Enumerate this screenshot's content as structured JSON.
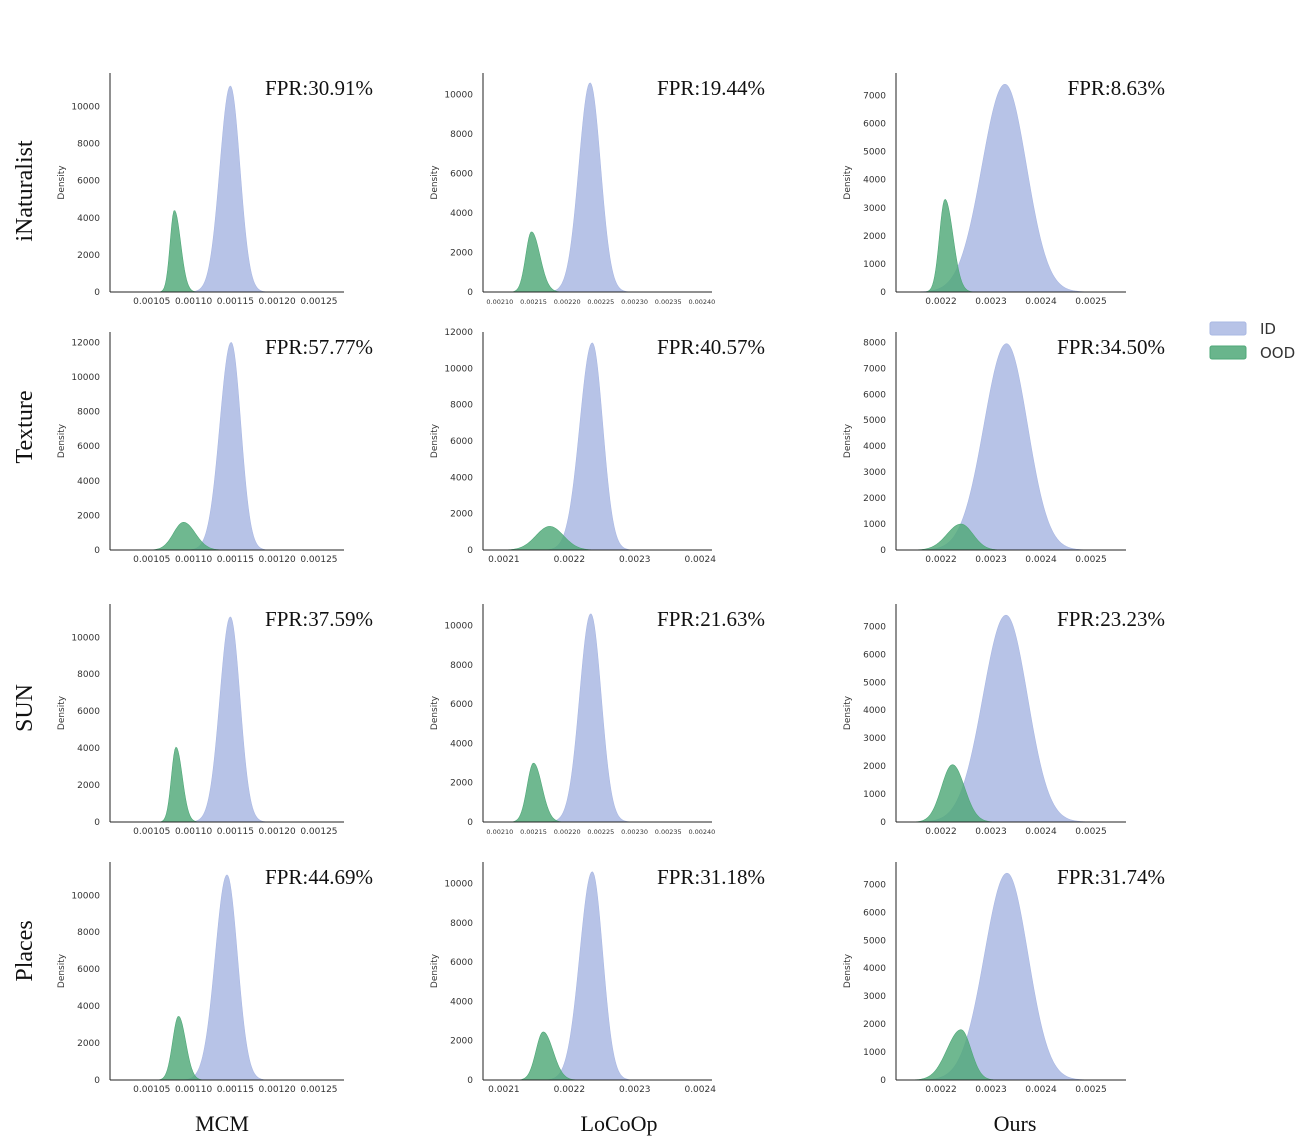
{
  "figure": {
    "row_labels": [
      "iNaturalist",
      "Texture",
      "SUN",
      "Places"
    ],
    "column_labels": [
      "MCM",
      "LoCoOp",
      "Ours"
    ],
    "legend": [
      {
        "label": "ID",
        "color": "#aab8e3"
      },
      {
        "label": "OOD",
        "color": "#4fa878"
      }
    ],
    "y_axis_label": "Density"
  },
  "chart_data": [
    {
      "type": "area",
      "row": "iNaturalist",
      "method": "MCM",
      "title": "FPR:30.91%",
      "ylabel": "Density",
      "xlim": [
        0.001,
        0.00128
      ],
      "ylim": [
        0,
        11800
      ],
      "xticks": [
        0.00105,
        0.0011,
        0.00115,
        0.0012,
        0.00125
      ],
      "xtick_labels": [
        "0.00105",
        "0.00110",
        "0.00115",
        "0.00120",
        "0.00125"
      ],
      "yticks": [
        0,
        2000,
        4000,
        6000,
        8000,
        10000
      ],
      "ytick_labels": [
        "0",
        "2000",
        "4000",
        "6000",
        "8000",
        "10000"
      ],
      "series": [
        {
          "name": "ID",
          "peak_x": 0.001144,
          "peak_y": 11100,
          "sigma_left": 1.25e-05,
          "sigma_right": 1.15e-05
        },
        {
          "name": "OOD",
          "peak_x": 0.001077,
          "peak_y": 4400,
          "sigma_left": 5e-06,
          "sigma_right": 7.5e-06
        }
      ]
    },
    {
      "type": "area",
      "row": "iNaturalist",
      "method": "LoCoOp",
      "title": "FPR:19.44%",
      "ylabel": "Density",
      "xlim": [
        0.002075,
        0.002415
      ],
      "ylim": [
        0,
        11100
      ],
      "xticks": [
        0.0021,
        0.00215,
        0.0022,
        0.00225,
        0.0023,
        0.00235,
        0.0024
      ],
      "xtick_labels": [
        "0.00210",
        "0.00215",
        "0.00220",
        "0.00225",
        "0.00230",
        "0.00235",
        "0.00240"
      ],
      "yticks": [
        0,
        2000,
        4000,
        6000,
        8000,
        10000
      ],
      "ytick_labels": [
        "0",
        "2000",
        "4000",
        "6000",
        "8000",
        "10000"
      ],
      "series": [
        {
          "name": "ID",
          "peak_x": 0.002234,
          "peak_y": 10600,
          "sigma_left": 1.65e-05,
          "sigma_right": 1.55e-05
        },
        {
          "name": "OOD",
          "peak_x": 0.002147,
          "peak_y": 3050,
          "sigma_left": 8.5e-06,
          "sigma_right": 1.25e-05
        }
      ]
    },
    {
      "type": "area",
      "row": "iNaturalist",
      "method": "Ours",
      "title": "FPR:8.63%",
      "ylabel": "Density",
      "xlim": [
        0.00211,
        0.00257
      ],
      "ylim": [
        0,
        7800
      ],
      "xticks": [
        0.0022,
        0.0023,
        0.0024,
        0.0025
      ],
      "xtick_labels": [
        "0.0022",
        "0.0023",
        "0.0024",
        "0.0025"
      ],
      "yticks": [
        0,
        1000,
        2000,
        3000,
        4000,
        5000,
        6000,
        7000
      ],
      "ytick_labels": [
        "0",
        "1000",
        "2000",
        "3000",
        "4000",
        "5000",
        "6000",
        "7000"
      ],
      "series": [
        {
          "name": "ID",
          "peak_x": 0.002328,
          "peak_y": 7400,
          "sigma_left": 4.6e-05,
          "sigma_right": 4.3e-05
        },
        {
          "name": "OOD",
          "peak_x": 0.002208,
          "peak_y": 3300,
          "sigma_left": 1.1e-05,
          "sigma_right": 1.6e-05
        }
      ]
    },
    {
      "type": "area",
      "row": "Texture",
      "method": "MCM",
      "title": "FPR:57.77%",
      "ylabel": "Density",
      "xlim": [
        0.001,
        0.00128
      ],
      "ylim": [
        0,
        12600
      ],
      "xticks": [
        0.00105,
        0.0011,
        0.00115,
        0.0012,
        0.00125
      ],
      "xtick_labels": [
        "0.00105",
        "0.00110",
        "0.00115",
        "0.00120",
        "0.00125"
      ],
      "yticks": [
        0,
        2000,
        4000,
        6000,
        8000,
        10000,
        12000
      ],
      "ytick_labels": [
        "0",
        "2000",
        "4000",
        "6000",
        "8000",
        "10000",
        "12000"
      ],
      "series": [
        {
          "name": "ID",
          "peak_x": 0.001145,
          "peak_y": 12000,
          "sigma_left": 1.35e-05,
          "sigma_right": 1.15e-05
        },
        {
          "name": "OOD",
          "peak_x": 0.001088,
          "peak_y": 1600,
          "sigma_left": 1.2e-05,
          "sigma_right": 1.4e-05
        }
      ]
    },
    {
      "type": "area",
      "row": "Texture",
      "method": "LoCoOp",
      "title": "FPR:40.57%",
      "ylabel": "Density",
      "xlim": [
        0.002068,
        0.002418
      ],
      "ylim": [
        0,
        12000
      ],
      "xticks": [
        0.0021,
        0.0022,
        0.0023,
        0.0024
      ],
      "xtick_labels": [
        "0.0021",
        "0.0022",
        "0.0023",
        "0.0024"
      ],
      "yticks": [
        0,
        2000,
        4000,
        6000,
        8000,
        10000,
        12000
      ],
      "ytick_labels": [
        "0",
        "2000",
        "4000",
        "6000",
        "8000",
        "10000",
        "12000"
      ],
      "series": [
        {
          "name": "ID",
          "peak_x": 0.002235,
          "peak_y": 11400,
          "sigma_left": 1.9e-05,
          "sigma_right": 1.6e-05
        },
        {
          "name": "OOD",
          "peak_x": 0.00217,
          "peak_y": 1300,
          "sigma_left": 2.1e-05,
          "sigma_right": 2.1e-05
        }
      ]
    },
    {
      "type": "area",
      "row": "Texture",
      "method": "Ours",
      "title": "FPR:34.50%",
      "ylabel": "Density",
      "xlim": [
        0.00211,
        0.00257
      ],
      "ylim": [
        0,
        8400
      ],
      "xticks": [
        0.0022,
        0.0023,
        0.0024,
        0.0025
      ],
      "xtick_labels": [
        "0.0022",
        "0.0023",
        "0.0024",
        "0.0025"
      ],
      "yticks": [
        0,
        1000,
        2000,
        3000,
        4000,
        5000,
        6000,
        7000,
        8000
      ],
      "ytick_labels": [
        "0",
        "1000",
        "2000",
        "3000",
        "4000",
        "5000",
        "6000",
        "7000",
        "8000"
      ],
      "series": [
        {
          "name": "ID",
          "peak_x": 0.002331,
          "peak_y": 7950,
          "sigma_left": 4.5e-05,
          "sigma_right": 4.2e-05
        },
        {
          "name": "OOD",
          "peak_x": 0.00224,
          "peak_y": 1000,
          "sigma_left": 2.8e-05,
          "sigma_right": 2.4e-05
        }
      ]
    },
    {
      "type": "area",
      "row": "SUN",
      "method": "MCM",
      "title": "FPR:37.59%",
      "ylabel": "Density",
      "xlim": [
        0.001,
        0.00128
      ],
      "ylim": [
        0,
        11800
      ],
      "xticks": [
        0.00105,
        0.0011,
        0.00115,
        0.0012,
        0.00125
      ],
      "xtick_labels": [
        "0.00105",
        "0.00110",
        "0.00115",
        "0.00120",
        "0.00125"
      ],
      "yticks": [
        0,
        2000,
        4000,
        6000,
        8000,
        10000
      ],
      "ytick_labels": [
        "0",
        "2000",
        "4000",
        "6000",
        "8000",
        "10000"
      ],
      "series": [
        {
          "name": "ID",
          "peak_x": 0.001144,
          "peak_y": 11100,
          "sigma_left": 1.25e-05,
          "sigma_right": 1.15e-05
        },
        {
          "name": "OOD",
          "peak_x": 0.001079,
          "peak_y": 4050,
          "sigma_left": 5.5e-06,
          "sigma_right": 7.5e-06
        }
      ]
    },
    {
      "type": "area",
      "row": "SUN",
      "method": "LoCoOp",
      "title": "FPR:21.63%",
      "ylabel": "Density",
      "xlim": [
        0.002075,
        0.002415
      ],
      "ylim": [
        0,
        11100
      ],
      "xticks": [
        0.0021,
        0.00215,
        0.0022,
        0.00225,
        0.0023,
        0.00235,
        0.0024
      ],
      "xtick_labels": [
        "0.00210",
        "0.00215",
        "0.00220",
        "0.00225",
        "0.00230",
        "0.00235",
        "0.00240"
      ],
      "yticks": [
        0,
        2000,
        4000,
        6000,
        8000,
        10000
      ],
      "ytick_labels": [
        "0",
        "2000",
        "4000",
        "6000",
        "8000",
        "10000"
      ],
      "series": [
        {
          "name": "ID",
          "peak_x": 0.002235,
          "peak_y": 10600,
          "sigma_left": 1.65e-05,
          "sigma_right": 1.55e-05
        },
        {
          "name": "OOD",
          "peak_x": 0.00215,
          "peak_y": 3000,
          "sigma_left": 9.5e-06,
          "sigma_right": 1.25e-05
        }
      ]
    },
    {
      "type": "area",
      "row": "SUN",
      "method": "Ours",
      "title": "FPR:23.23%",
      "ylabel": "Density",
      "xlim": [
        0.00211,
        0.00257
      ],
      "ylim": [
        0,
        7800
      ],
      "xticks": [
        0.0022,
        0.0023,
        0.0024,
        0.0025
      ],
      "xtick_labels": [
        "0.0022",
        "0.0023",
        "0.0024",
        "0.0025"
      ],
      "yticks": [
        0,
        1000,
        2000,
        3000,
        4000,
        5000,
        6000,
        7000
      ],
      "ytick_labels": [
        "0",
        "1000",
        "2000",
        "3000",
        "4000",
        "5000",
        "6000",
        "7000"
      ],
      "series": [
        {
          "name": "ID",
          "peak_x": 0.00233,
          "peak_y": 7400,
          "sigma_left": 4.6e-05,
          "sigma_right": 4.3e-05
        },
        {
          "name": "OOD",
          "peak_x": 0.002223,
          "peak_y": 2050,
          "sigma_left": 2.2e-05,
          "sigma_right": 2.4e-05
        }
      ]
    },
    {
      "type": "area",
      "row": "Places",
      "method": "MCM",
      "title": "FPR:44.69%",
      "ylabel": "Density",
      "xlim": [
        0.001,
        0.00128
      ],
      "ylim": [
        0,
        11800
      ],
      "xticks": [
        0.00105,
        0.0011,
        0.00115,
        0.0012,
        0.00125
      ],
      "xtick_labels": [
        "0.00105",
        "0.00110",
        "0.00115",
        "0.00120",
        "0.00125"
      ],
      "yticks": [
        0,
        2000,
        4000,
        6000,
        8000,
        10000
      ],
      "ytick_labels": [
        "0",
        "2000",
        "4000",
        "6000",
        "8000",
        "10000"
      ],
      "series": [
        {
          "name": "ID",
          "peak_x": 0.00114,
          "peak_y": 11100,
          "sigma_left": 1.4e-05,
          "sigma_right": 1.25e-05
        },
        {
          "name": "OOD",
          "peak_x": 0.001082,
          "peak_y": 3450,
          "sigma_left": 7e-06,
          "sigma_right": 8.5e-06
        }
      ]
    },
    {
      "type": "area",
      "row": "Places",
      "method": "LoCoOp",
      "title": "FPR:31.18%",
      "ylabel": "Density",
      "xlim": [
        0.002068,
        0.002418
      ],
      "ylim": [
        0,
        11100
      ],
      "xticks": [
        0.0021,
        0.0022,
        0.0023,
        0.0024
      ],
      "xtick_labels": [
        "0.0021",
        "0.0022",
        "0.0023",
        "0.0024"
      ],
      "yticks": [
        0,
        2000,
        4000,
        6000,
        8000,
        10000
      ],
      "ytick_labels": [
        "0",
        "2000",
        "4000",
        "6000",
        "8000",
        "10000"
      ],
      "series": [
        {
          "name": "ID",
          "peak_x": 0.002235,
          "peak_y": 10600,
          "sigma_left": 1.9e-05,
          "sigma_right": 1.6e-05
        },
        {
          "name": "OOD",
          "peak_x": 0.00216,
          "peak_y": 2450,
          "sigma_left": 1.1e-05,
          "sigma_right": 1.5e-05
        }
      ]
    },
    {
      "type": "area",
      "row": "Places",
      "method": "Ours",
      "title": "FPR:31.74%",
      "ylabel": "Density",
      "xlim": [
        0.00211,
        0.00257
      ],
      "ylim": [
        0,
        7800
      ],
      "xticks": [
        0.0022,
        0.0023,
        0.0024,
        0.0025
      ],
      "xtick_labels": [
        "0.0022",
        "0.0023",
        "0.0024",
        "0.0025"
      ],
      "yticks": [
        0,
        1000,
        2000,
        3000,
        4000,
        5000,
        6000,
        7000
      ],
      "ytick_labels": [
        "0",
        "1000",
        "2000",
        "3000",
        "4000",
        "5000",
        "6000",
        "7000"
      ],
      "series": [
        {
          "name": "ID",
          "peak_x": 0.002332,
          "peak_y": 7400,
          "sigma_left": 4.5e-05,
          "sigma_right": 4.2e-05
        },
        {
          "name": "OOD",
          "peak_x": 0.00224,
          "peak_y": 1800,
          "sigma_left": 2.8e-05,
          "sigma_right": 2e-05
        }
      ]
    }
  ]
}
